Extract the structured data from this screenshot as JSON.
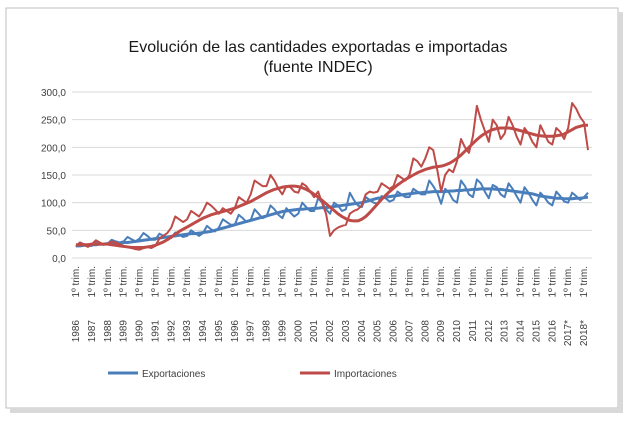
{
  "chart_data": {
    "type": "line",
    "title": "Evolución de las cantidades exportadas e importadas",
    "subtitle": "(fuente INDEC)",
    "period_label": "1º trim.",
    "categories": [
      "1986",
      null,
      null,
      null,
      "1987",
      null,
      null,
      null,
      "1988",
      null,
      null,
      null,
      "1989",
      null,
      null,
      null,
      "1990",
      null,
      null,
      null,
      "1991",
      null,
      null,
      null,
      "1992",
      null,
      null,
      null,
      "1993",
      null,
      null,
      null,
      "1994",
      null,
      null,
      null,
      "1995",
      null,
      null,
      null,
      "1996",
      null,
      null,
      null,
      "1997",
      null,
      null,
      null,
      "1998",
      null,
      null,
      null,
      "1999",
      null,
      null,
      null,
      "2000",
      null,
      null,
      null,
      "2001",
      null,
      null,
      null,
      "2002",
      null,
      null,
      null,
      "2003",
      null,
      null,
      null,
      "2004",
      null,
      null,
      null,
      "2005",
      null,
      null,
      null,
      "2006",
      null,
      null,
      null,
      "2007",
      null,
      null,
      null,
      "2008",
      null,
      null,
      null,
      "2009",
      null,
      null,
      null,
      "2010",
      null,
      null,
      null,
      "2011",
      null,
      null,
      null,
      "2012",
      null,
      null,
      null,
      "2013",
      null,
      null,
      null,
      "2014",
      null,
      null,
      null,
      "2015",
      null,
      null,
      null,
      "2016",
      null,
      null,
      null,
      "2017*",
      null,
      null,
      null,
      "2018*",
      null
    ],
    "ylim": [
      0,
      300
    ],
    "yticks": [
      {
        "value": 0,
        "label": "0,0"
      },
      {
        "value": 50,
        "label": "50,0"
      },
      {
        "value": 100,
        "label": "100,0"
      },
      {
        "value": 150,
        "label": "150,0"
      },
      {
        "value": 200,
        "label": "200,0"
      },
      {
        "value": 250,
        "label": "250,0"
      },
      {
        "value": 300,
        "label": "300,0"
      }
    ],
    "grid": true,
    "legend": "bottom",
    "series": [
      {
        "name": "Exportaciones",
        "color": "#4a7ebb",
        "values": [
          20,
          28,
          25,
          22,
          22,
          30,
          27,
          24,
          26,
          33,
          30,
          28,
          30,
          38,
          34,
          30,
          35,
          45,
          40,
          33,
          33,
          44,
          40,
          36,
          36,
          46,
          42,
          38,
          40,
          50,
          45,
          40,
          45,
          58,
          52,
          48,
          55,
          70,
          65,
          60,
          60,
          78,
          72,
          65,
          68,
          88,
          80,
          72,
          75,
          95,
          88,
          78,
          72,
          90,
          82,
          75,
          80,
          100,
          92,
          85,
          85,
          108,
          100,
          88,
          80,
          100,
          95,
          85,
          88,
          118,
          105,
          95,
          92,
          110,
          105,
          100,
          98,
          112,
          108,
          102,
          105,
          120,
          115,
          110,
          110,
          125,
          120,
          115,
          115,
          140,
          130,
          118,
          98,
          125,
          118,
          105,
          100,
          140,
          130,
          115,
          110,
          142,
          135,
          120,
          108,
          132,
          128,
          115,
          110,
          135,
          125,
          112,
          100,
          128,
          118,
          105,
          95,
          118,
          110,
          100,
          95,
          120,
          112,
          102,
          100,
          118,
          112,
          105,
          110,
          118
        ],
        "trend": [
          22,
          22,
          23,
          23,
          24,
          24,
          25,
          25,
          26,
          26,
          27,
          27,
          28,
          28,
          29,
          30,
          31,
          32,
          33,
          34,
          35,
          36,
          37,
          38,
          39,
          40,
          41,
          42,
          43,
          44,
          44,
          45,
          46,
          47,
          48,
          50,
          52,
          54,
          56,
          58,
          60,
          62,
          64,
          66,
          68,
          70,
          72,
          74,
          76,
          78,
          80,
          82,
          84,
          85,
          86,
          87,
          88,
          88,
          89,
          89,
          90,
          90,
          91,
          91,
          92,
          93,
          94,
          95,
          96,
          97,
          98,
          99,
          100,
          102,
          104,
          106,
          108,
          109,
          110,
          111,
          112,
          113,
          114,
          115,
          116,
          117,
          118,
          118,
          119,
          119,
          120,
          120,
          120,
          120,
          121,
          121,
          122,
          122,
          123,
          123,
          124,
          124,
          125,
          125,
          125,
          125,
          124,
          124,
          123,
          122,
          121,
          120,
          119,
          118,
          117,
          116,
          114,
          112,
          111,
          110,
          109,
          108,
          108,
          107,
          107,
          107,
          108,
          108,
          109,
          110
        ]
      },
      {
        "name": "Importaciones",
        "color": "#be4b48",
        "values": [
          22,
          28,
          24,
          20,
          25,
          32,
          28,
          24,
          26,
          30,
          28,
          25,
          22,
          20,
          18,
          16,
          15,
          18,
          20,
          18,
          22,
          35,
          40,
          45,
          55,
          75,
          70,
          65,
          70,
          85,
          80,
          75,
          85,
          100,
          95,
          88,
          80,
          90,
          85,
          80,
          90,
          110,
          105,
          100,
          115,
          140,
          135,
          130,
          130,
          150,
          140,
          125,
          115,
          130,
          128,
          120,
          118,
          135,
          130,
          120,
          110,
          120,
          100,
          80,
          40,
          50,
          55,
          58,
          60,
          80,
          85,
          88,
          95,
          115,
          120,
          118,
          120,
          135,
          130,
          125,
          130,
          150,
          145,
          140,
          150,
          180,
          175,
          165,
          180,
          200,
          195,
          160,
          120,
          150,
          160,
          155,
          175,
          215,
          200,
          190,
          220,
          275,
          250,
          230,
          210,
          250,
          240,
          215,
          225,
          255,
          240,
          220,
          205,
          235,
          225,
          210,
          200,
          240,
          225,
          210,
          205,
          235,
          228,
          215,
          235,
          280,
          270,
          255,
          245,
          195
        ],
        "trend": [
          24,
          24,
          24,
          24,
          25,
          25,
          25,
          25,
          25,
          24,
          23,
          22,
          21,
          20,
          19,
          19,
          19,
          19,
          20,
          21,
          23,
          26,
          29,
          33,
          38,
          43,
          48,
          52,
          56,
          60,
          64,
          68,
          72,
          75,
          78,
          80,
          82,
          84,
          86,
          88,
          90,
          93,
          96,
          99,
          102,
          106,
          110,
          114,
          118,
          121,
          124,
          126,
          128,
          129,
          130,
          130,
          129,
          127,
          124,
          120,
          115,
          110,
          104,
          98,
          92,
          86,
          80,
          75,
          71,
          68,
          67,
          67,
          70,
          75,
          82,
          90,
          98,
          106,
          113,
          120,
          126,
          132,
          137,
          142,
          146,
          150,
          154,
          157,
          160,
          162,
          164,
          165,
          166,
          168,
          171,
          175,
          180,
          186,
          193,
          200,
          207,
          214,
          220,
          225,
          229,
          232,
          234,
          235,
          235,
          235,
          234,
          232,
          230,
          228,
          226,
          224,
          222,
          221,
          220,
          220,
          220,
          221,
          222,
          224,
          228,
          232,
          236,
          238,
          240,
          240
        ]
      }
    ]
  }
}
